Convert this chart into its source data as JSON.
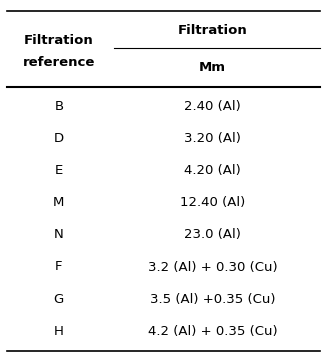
{
  "col1_header_line1": "Filtration",
  "col1_header_line2": "reference",
  "col2_group_header": "Filtration",
  "col2_sub_header": "Mm",
  "rows": [
    [
      "B",
      "2.40 (Al)"
    ],
    [
      "D",
      "3.20 (Al)"
    ],
    [
      "E",
      "4.20 (Al)"
    ],
    [
      "M",
      "12.40 (Al)"
    ],
    [
      "N",
      "23.0 (Al)"
    ],
    [
      "F",
      "3.2 (Al) + 0.30 (Cu)"
    ],
    [
      "G",
      "3.5 (Al) +0.35 (Cu)"
    ],
    [
      "H",
      "4.2 (Al) + 0.35 (Cu)"
    ]
  ],
  "bg_color": "#ffffff",
  "text_color": "#000000",
  "header_fontsize": 9.5,
  "cell_fontsize": 9.5,
  "figwidth": 3.27,
  "figheight": 3.56,
  "dpi": 100
}
